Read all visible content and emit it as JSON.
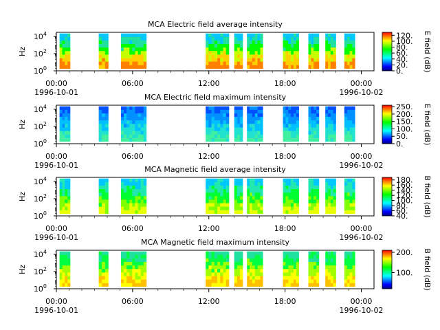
{
  "chart_data": [
    {
      "type": "heatmap",
      "title": "MCA  Electric field average intensity",
      "ylabel": "Hz",
      "ylim": [
        1,
        30000
      ],
      "yscale": "log",
      "yticks": [
        {
          "exp": "0",
          "label": "10"
        },
        {
          "exp": "2",
          "label": "10"
        },
        {
          "exp": "4",
          "label": "10"
        }
      ],
      "xlim": [
        "1996-10-01T00:00",
        "1996-10-02T01:00"
      ],
      "xticks": [
        "00:00",
        "06:00",
        "12:00",
        "18:00",
        "00:00"
      ],
      "xtick_dates": [
        "1996-10-01",
        "",
        "",
        "",
        "1996-10-02"
      ],
      "colorbar": {
        "label": "E field (dB)",
        "range": [
          0,
          130
        ],
        "ticks": [
          "0.",
          "20.",
          "40.",
          "60.",
          "80.",
          "100.",
          "120."
        ]
      },
      "segments": [
        [
          "1996-10-01T00:15",
          "1996-10-01T01:05"
        ],
        [
          "1996-10-01T03:20",
          "1996-10-01T04:05"
        ],
        [
          "1996-10-01T05:05",
          "1996-10-01T07:05"
        ],
        [
          "1996-10-01T11:45",
          "1996-10-01T13:35"
        ],
        [
          "1996-10-01T14:00",
          "1996-10-01T14:40"
        ],
        [
          "1996-10-01T15:00",
          "1996-10-01T16:15"
        ],
        [
          "1996-10-01T17:50",
          "1996-10-01T19:05"
        ],
        [
          "1996-10-01T19:50",
          "1996-10-01T20:40"
        ],
        [
          "1996-10-01T21:10",
          "1996-10-01T22:00"
        ],
        [
          "1996-10-01T22:40",
          "1996-10-01T23:30"
        ]
      ],
      "palette": [
        "#00c8ff",
        "#20e0a0",
        "#00ff00",
        "#c8ff00",
        "#ffd000",
        "#ff8000"
      ]
    },
    {
      "type": "heatmap",
      "title": "MCA  Electric field maximum intensity",
      "ylabel": "Hz",
      "ylim": [
        1,
        30000
      ],
      "yscale": "log",
      "yticks": [
        {
          "exp": "0",
          "label": "10"
        },
        {
          "exp": "2",
          "label": "10"
        },
        {
          "exp": "4",
          "label": "10"
        }
      ],
      "xlim": [
        "1996-10-01T00:00",
        "1996-10-02T01:00"
      ],
      "xticks": [
        "00:00",
        "06:00",
        "12:00",
        "18:00",
        "00:00"
      ],
      "xtick_dates": [
        "1996-10-01",
        "",
        "",
        "",
        "1996-10-02"
      ],
      "colorbar": {
        "label": "E field (dB)",
        "range": [
          0,
          260
        ],
        "ticks": [
          "0.",
          "50.",
          "100.",
          "150.",
          "200.",
          "250."
        ]
      },
      "segments": [
        [
          "1996-10-01T00:15",
          "1996-10-01T01:05"
        ],
        [
          "1996-10-01T03:20",
          "1996-10-01T04:05"
        ],
        [
          "1996-10-01T05:05",
          "1996-10-01T07:05"
        ],
        [
          "1996-10-01T11:45",
          "1996-10-01T13:35"
        ],
        [
          "1996-10-01T14:00",
          "1996-10-01T14:40"
        ],
        [
          "1996-10-01T15:00",
          "1996-10-01T16:15"
        ],
        [
          "1996-10-01T17:50",
          "1996-10-01T19:05"
        ],
        [
          "1996-10-01T19:50",
          "1996-10-01T20:40"
        ],
        [
          "1996-10-01T21:10",
          "1996-10-01T22:00"
        ],
        [
          "1996-10-01T22:40",
          "1996-10-01T23:30"
        ]
      ],
      "palette": [
        "#0050ff",
        "#0090ff",
        "#00c0ff",
        "#20e0d0",
        "#40f0a0"
      ]
    },
    {
      "type": "heatmap",
      "title": "MCA  Magnetic field average intensity",
      "ylabel": "Hz",
      "ylim": [
        1,
        30000
      ],
      "yscale": "log",
      "yticks": [
        {
          "exp": "0",
          "label": "10"
        },
        {
          "exp": "2",
          "label": "10"
        },
        {
          "exp": "4",
          "label": "10"
        }
      ],
      "xlim": [
        "1996-10-01T00:00",
        "1996-10-02T01:00"
      ],
      "xticks": [
        "00:00",
        "06:00",
        "12:00",
        "18:00",
        "00:00"
      ],
      "xtick_dates": [
        "1996-10-01",
        "",
        "",
        "",
        "1996-10-02"
      ],
      "colorbar": {
        "label": "B field (dB)",
        "range": [
          40,
          190
        ],
        "ticks": [
          "40.",
          "60.",
          "80.",
          "100.",
          "120.",
          "140.",
          "160.",
          "180."
        ]
      },
      "segments": [
        [
          "1996-10-01T00:15",
          "1996-10-01T01:05"
        ],
        [
          "1996-10-01T03:20",
          "1996-10-01T04:05"
        ],
        [
          "1996-10-01T05:05",
          "1996-10-01T07:05"
        ],
        [
          "1996-10-01T11:45",
          "1996-10-01T13:35"
        ],
        [
          "1996-10-01T14:00",
          "1996-10-01T14:40"
        ],
        [
          "1996-10-01T15:00",
          "1996-10-01T16:15"
        ],
        [
          "1996-10-01T17:50",
          "1996-10-01T19:05"
        ],
        [
          "1996-10-01T19:50",
          "1996-10-01T20:40"
        ],
        [
          "1996-10-01T21:10",
          "1996-10-01T22:00"
        ],
        [
          "1996-10-01T22:40",
          "1996-10-01T23:30"
        ]
      ],
      "palette": [
        "#00c8ff",
        "#20e8b0",
        "#00ff30",
        "#80ff00",
        "#e8ff00"
      ]
    },
    {
      "type": "heatmap",
      "title": "MCA  Magnetic field maximum intensity",
      "ylabel": "Hz",
      "ylim": [
        1,
        30000
      ],
      "yscale": "log",
      "yticks": [
        {
          "exp": "0",
          "label": "10"
        },
        {
          "exp": "2",
          "label": "10"
        },
        {
          "exp": "4",
          "label": "10"
        }
      ],
      "xlim": [
        "1996-10-01T00:00",
        "1996-10-02T01:00"
      ],
      "xticks": [
        "00:00",
        "06:00",
        "12:00",
        "18:00",
        "00:00"
      ],
      "xtick_dates": [
        "1996-10-01",
        "",
        "",
        "",
        "1996-10-02"
      ],
      "colorbar": {
        "label": "B field (dB)",
        "range": [
          20,
          210
        ],
        "ticks": [
          "100.",
          "200."
        ]
      },
      "segments": [
        [
          "1996-10-01T00:15",
          "1996-10-01T01:05"
        ],
        [
          "1996-10-01T03:20",
          "1996-10-01T04:05"
        ],
        [
          "1996-10-01T05:05",
          "1996-10-01T07:05"
        ],
        [
          "1996-10-01T11:45",
          "1996-10-01T13:35"
        ],
        [
          "1996-10-01T14:00",
          "1996-10-01T14:40"
        ],
        [
          "1996-10-01T15:00",
          "1996-10-01T16:15"
        ],
        [
          "1996-10-01T17:50",
          "1996-10-01T19:05"
        ],
        [
          "1996-10-01T19:50",
          "1996-10-01T20:40"
        ],
        [
          "1996-10-01T21:10",
          "1996-10-01T22:00"
        ],
        [
          "1996-10-01T22:40",
          "1996-10-01T23:30"
        ]
      ],
      "palette": [
        "#20e0a0",
        "#00ff40",
        "#a0ff00",
        "#ffff00",
        "#ffc000"
      ]
    }
  ],
  "colormap": [
    "#000080",
    "#0000ff",
    "#0080ff",
    "#00ffff",
    "#00ff80",
    "#00ff00",
    "#80ff00",
    "#ffff00",
    "#ff8000",
    "#ff0000"
  ]
}
